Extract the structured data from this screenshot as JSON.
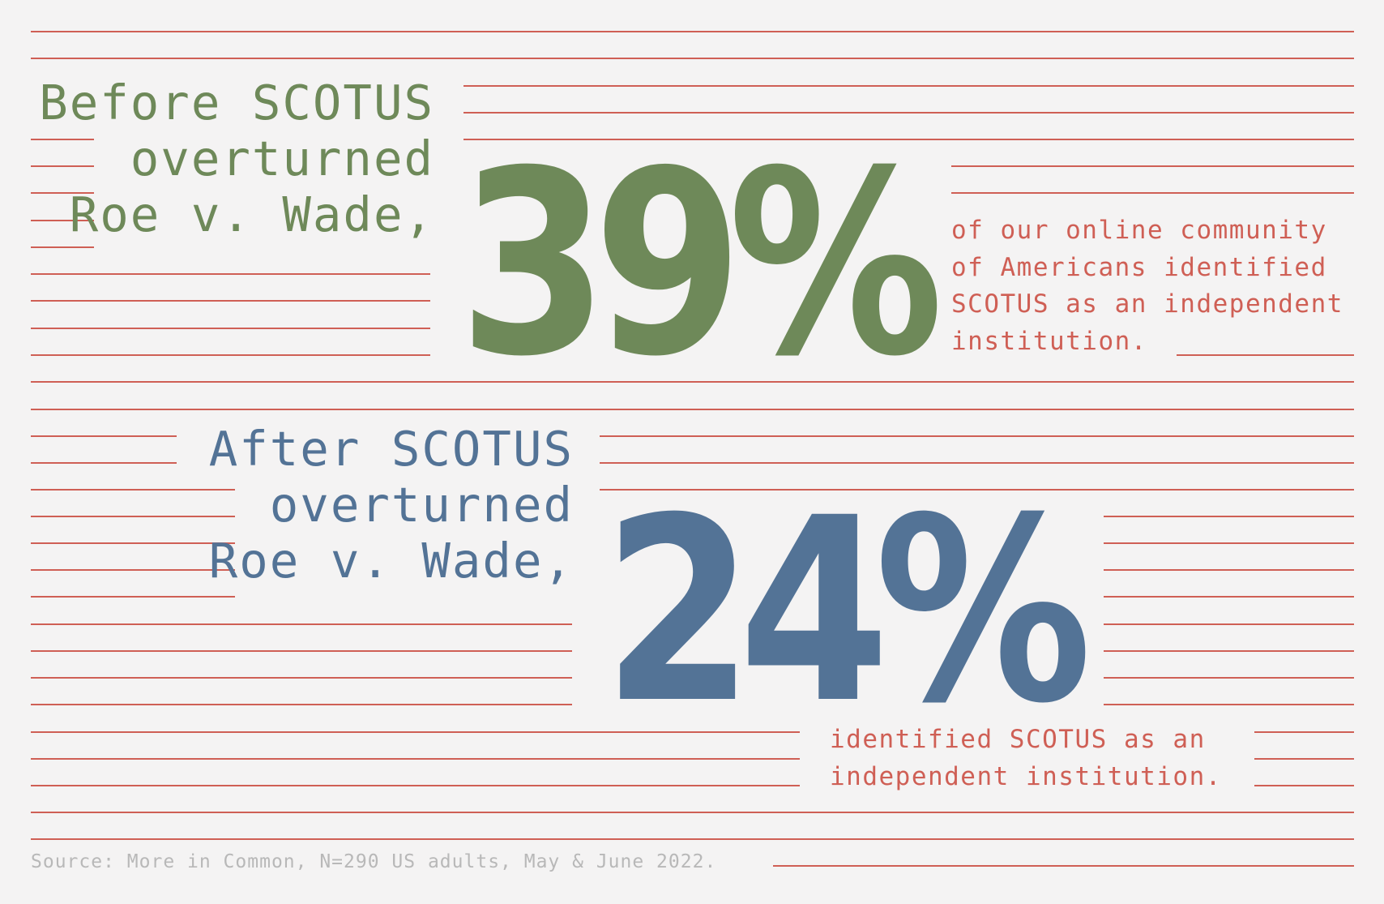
{
  "colors": {
    "background": "#f4f3f3",
    "rule_lines": "#cf5f55",
    "before_green": "#6e8959",
    "after_blue": "#537396",
    "body_text_red": "#cf5f55",
    "source_gray": "#b8b8b8"
  },
  "before": {
    "heading_lines": [
      "Before SCOTUS",
      "overturned",
      "Roe v. Wade,"
    ],
    "stat": "39%",
    "description_lines": [
      "of our online community",
      "of Americans identified",
      "SCOTUS as an independent",
      "institution."
    ]
  },
  "after": {
    "heading_lines": [
      "After SCOTUS",
      "overturned",
      "Roe v. Wade,"
    ],
    "stat": "24%",
    "description_lines": [
      "identified SCOTUS as an",
      "independent institution."
    ]
  },
  "source": "Source: More in Common, N=290 US adults, May & June 2022."
}
